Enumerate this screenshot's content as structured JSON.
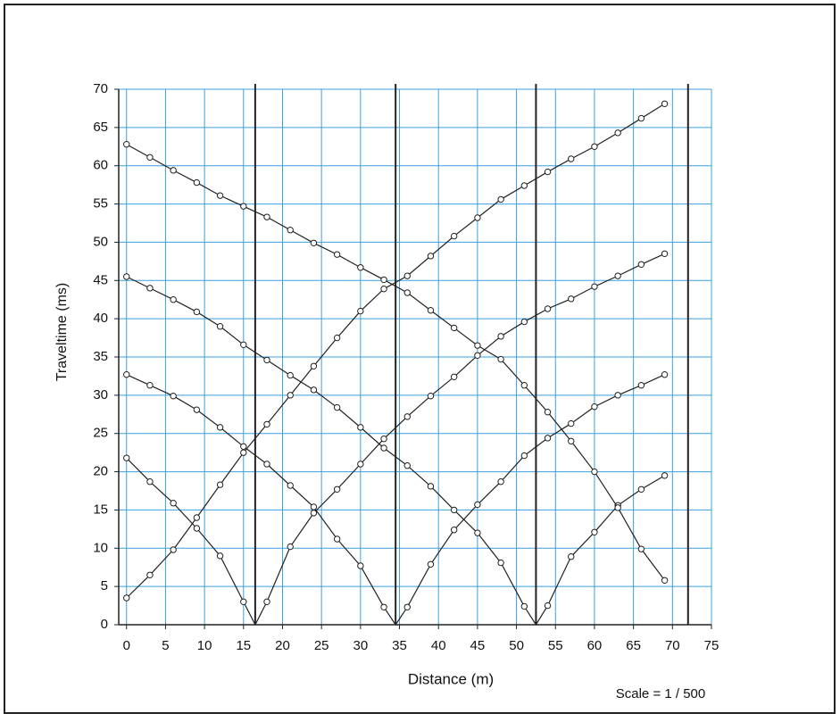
{
  "chart_data": {
    "type": "line",
    "x_label": "Distance (m)",
    "y_label": "Traveltime (ms)",
    "note": "Scale = 1 / 500",
    "xlim": [
      -1,
      75
    ],
    "ylim": [
      0,
      70
    ],
    "xticks": [
      0,
      5,
      10,
      15,
      20,
      25,
      30,
      35,
      40,
      45,
      50,
      55,
      60,
      65,
      70,
      75
    ],
    "yticks": [
      0,
      5,
      10,
      15,
      20,
      25,
      30,
      35,
      40,
      45,
      50,
      55,
      60,
      65,
      70
    ],
    "grid": true,
    "grid_color": "#3a9fe0",
    "vlines": [
      16.5,
      34.5,
      52.5,
      72
    ],
    "x": [
      0,
      3,
      6,
      9,
      12,
      15,
      18,
      21,
      24,
      27,
      30,
      33,
      36,
      39,
      42,
      45,
      48,
      51,
      54,
      57,
      60,
      63,
      66,
      69
    ],
    "series": [
      {
        "color": "#222",
        "values": [
          3.5,
          6.5,
          9.8,
          14,
          18.3,
          22.5,
          26.2,
          30,
          33.8,
          37.5,
          41,
          43.9,
          45.6,
          48.2,
          50.8,
          53.2,
          55.6,
          57.4,
          59.2,
          60.9,
          62.5,
          64.3,
          66.2,
          68.1
        ]
      },
      {
        "color": "#222",
        "shot": 16.5,
        "values": [
          21.8,
          18.7,
          15.9,
          12.6,
          9,
          3,
          3,
          10.2,
          14.6,
          17.7,
          21,
          24.3,
          27.2,
          29.9,
          32.4,
          35.2,
          37.7,
          39.6,
          41.3,
          42.6,
          44.2,
          45.6,
          47.1,
          48.5
        ]
      },
      {
        "color": "#222",
        "shot": 34.5,
        "values": [
          32.7,
          31.3,
          29.9,
          28.1,
          25.8,
          23.3,
          21,
          18.2,
          15.4,
          11.2,
          7.7,
          2.3,
          2.3,
          7.9,
          12.4,
          15.7,
          18.7,
          22.1,
          24.4,
          26.3,
          28.5,
          30,
          31.3,
          32.7
        ]
      },
      {
        "color": "#222",
        "shot": 52.5,
        "values": [
          45.5,
          44,
          42.5,
          40.9,
          39,
          36.6,
          34.6,
          32.6,
          30.7,
          28.4,
          25.8,
          23.1,
          20.8,
          18.1,
          15,
          12,
          8.1,
          2.4,
          2.5,
          8.9,
          12.1,
          15.6,
          17.7,
          19.5
        ]
      },
      {
        "color": "#222",
        "values": [
          62.8,
          61.1,
          59.4,
          57.8,
          56.1,
          54.7,
          53.3,
          51.6,
          49.9,
          48.4,
          46.7,
          45.1,
          43.4,
          41.1,
          38.8,
          36.5,
          34.7,
          31.3,
          27.8,
          24,
          20,
          15.3,
          9.9,
          5.8
        ]
      }
    ]
  }
}
